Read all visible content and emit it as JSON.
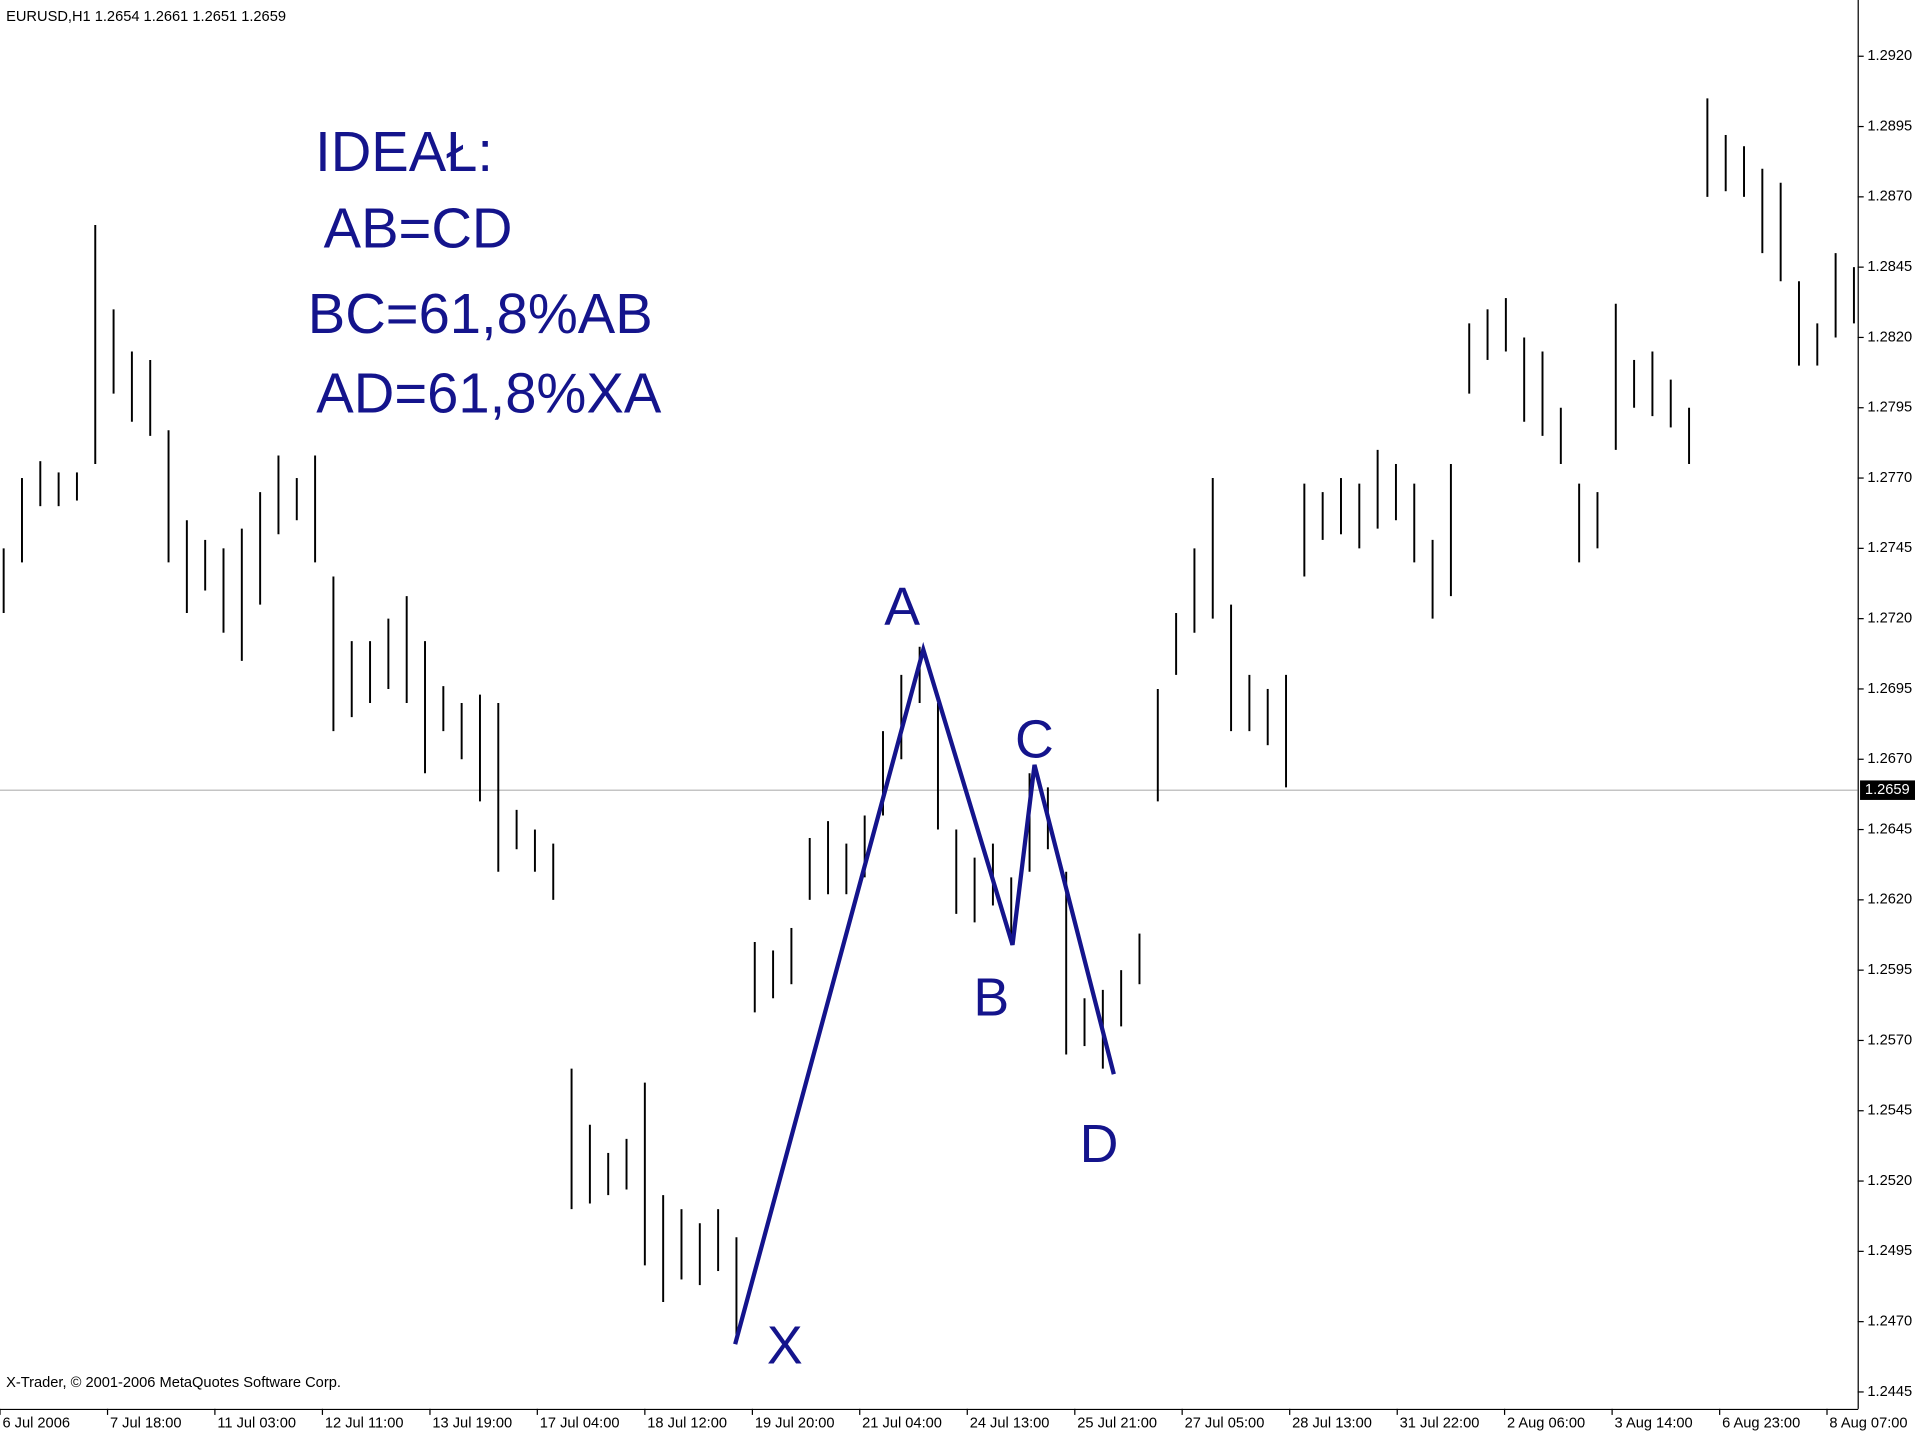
{
  "chart_data": {
    "type": "hilo",
    "title": "EURUSD,H1  1.2654 1.2661 1.2651 1.2659",
    "footer": "X-Trader, © 2001-2006 MetaQuotes Software Corp.",
    "annotations": [
      "IDEAŁ:",
      "AB=CD",
      "BC=61,8%AB",
      "AD=61,8%XA"
    ],
    "color": "#000000",
    "series": [
      {
        "high": [
          1.2745,
          1.277,
          1.2776,
          1.2772,
          1.2772,
          1.286,
          1.283,
          1.2815,
          1.2812,
          1.2787,
          1.2755,
          1.2748,
          1.2745,
          1.2752,
          1.2765,
          1.2778,
          1.277,
          1.2778,
          1.2735,
          1.2712,
          1.2712,
          1.272,
          1.2728,
          1.2712,
          1.2696,
          1.269,
          1.2693,
          1.269,
          1.2652,
          1.2645,
          1.264,
          1.256,
          1.254,
          1.253,
          1.2535,
          1.2555,
          1.2515,
          1.251,
          1.2505,
          1.251,
          1.25,
          1.2605,
          1.2602,
          1.261,
          1.2642,
          1.2648,
          1.264,
          1.265,
          1.268,
          1.27,
          1.271,
          1.269,
          1.2645,
          1.2635,
          1.264,
          1.2628,
          1.2665,
          1.266,
          1.263,
          1.2585,
          1.2588,
          1.2595,
          1.2608,
          1.2695,
          1.2722,
          1.2745,
          1.277,
          1.2725,
          1.27,
          1.2695,
          1.27,
          1.2768,
          1.2765,
          1.277,
          1.2768,
          1.278,
          1.2775,
          1.2768,
          1.2748,
          1.2775,
          1.2825,
          1.283,
          1.2834,
          1.282,
          1.2815,
          1.2795,
          1.2768,
          1.2765,
          1.2832,
          1.2812,
          1.2815,
          1.2805,
          1.2795,
          1.2905,
          1.2892,
          1.2888,
          1.288,
          1.2875,
          1.284,
          1.2825,
          1.285,
          1.2845
        ],
        "low": [
          1.2722,
          1.274,
          1.276,
          1.276,
          1.2762,
          1.2775,
          1.28,
          1.279,
          1.2785,
          1.274,
          1.2722,
          1.273,
          1.2715,
          1.2705,
          1.2725,
          1.275,
          1.2755,
          1.274,
          1.268,
          1.2685,
          1.269,
          1.2695,
          1.269,
          1.2665,
          1.268,
          1.267,
          1.2655,
          1.263,
          1.2638,
          1.263,
          1.262,
          1.251,
          1.2512,
          1.2515,
          1.2517,
          1.249,
          1.2477,
          1.2485,
          1.2483,
          1.2488,
          1.2463,
          1.258,
          1.2585,
          1.259,
          1.262,
          1.2622,
          1.2622,
          1.2628,
          1.265,
          1.267,
          1.269,
          1.2645,
          1.2615,
          1.2612,
          1.2618,
          1.2604,
          1.263,
          1.2638,
          1.2565,
          1.2568,
          1.256,
          1.2575,
          1.259,
          1.2655,
          1.27,
          1.2715,
          1.272,
          1.268,
          1.268,
          1.2675,
          1.266,
          1.2735,
          1.2748,
          1.275,
          1.2745,
          1.2752,
          1.2755,
          1.274,
          1.272,
          1.2728,
          1.28,
          1.2812,
          1.2815,
          1.279,
          1.2785,
          1.2775,
          1.274,
          1.2745,
          1.278,
          1.2795,
          1.2792,
          1.2788,
          1.2775,
          1.287,
          1.2872,
          1.287,
          1.285,
          1.284,
          1.281,
          1.281,
          1.282,
          1.2825
        ]
      }
    ],
    "pattern": {
      "color": "#14148c",
      "points": [
        {
          "label": "X",
          "x": 39.93,
          "y": 1.2462
        },
        {
          "label": "A",
          "x": 50.2,
          "y": 1.2709
        },
        {
          "label": "B",
          "x": 55.07,
          "y": 1.2604
        },
        {
          "label": "C",
          "x": 56.27,
          "y": 1.2668
        },
        {
          "label": "D",
          "x": 60.6,
          "y": 1.2558
        }
      ]
    },
    "current_price": {
      "value": 1.2659,
      "label": "1.2659"
    },
    "xlim": [
      -0.2,
      101.2
    ],
    "ylim": [
      1.2439,
      1.294
    ],
    "xticks": [
      {
        "value": -0.2,
        "label": "6 Jul 2006"
      },
      {
        "value": 5.67,
        "label": "7 Jul 18:00"
      },
      {
        "value": 11.53,
        "label": "11 Jul 03:00"
      },
      {
        "value": 17.4,
        "label": "12 Jul 11:00"
      },
      {
        "value": 23.27,
        "label": "13 Jul 19:00"
      },
      {
        "value": 29.13,
        "label": "17 Jul 04:00"
      },
      {
        "value": 35,
        "label": "18 Jul 12:00"
      },
      {
        "value": 40.87,
        "label": "19 Jul 20:00"
      },
      {
        "value": 46.73,
        "label": "21 Jul 04:00"
      },
      {
        "value": 52.6,
        "label": "24 Jul 13:00"
      },
      {
        "value": 58.47,
        "label": "25 Jul 21:00"
      },
      {
        "value": 64.33,
        "label": "27 Jul 05:00"
      },
      {
        "value": 70.2,
        "label": "28 Jul 13:00"
      },
      {
        "value": 76.07,
        "label": "31 Jul 22:00"
      },
      {
        "value": 81.93,
        "label": "2 Aug 06:00"
      },
      {
        "value": 87.8,
        "label": "3 Aug 14:00"
      },
      {
        "value": 93.67,
        "label": "6 Aug 23:00"
      },
      {
        "value": 99.53,
        "label": "8 Aug 07:00"
      }
    ],
    "yticks": [
      {
        "value": 1.292,
        "label": "1.2920"
      },
      {
        "value": 1.2895,
        "label": "1.2895"
      },
      {
        "value": 1.287,
        "label": "1.2870"
      },
      {
        "value": 1.2845,
        "label": "1.2845"
      },
      {
        "value": 1.282,
        "label": "1.2820"
      },
      {
        "value": 1.2795,
        "label": "1.2795"
      },
      {
        "value": 1.277,
        "label": "1.2770"
      },
      {
        "value": 1.2745,
        "label": "1.2745"
      },
      {
        "value": 1.272,
        "label": "1.2720"
      },
      {
        "value": 1.2695,
        "label": "1.2695"
      },
      {
        "value": 1.267,
        "label": "1.2670"
      },
      {
        "value": 1.2645,
        "label": "1.2645"
      },
      {
        "value": 1.262,
        "label": "1.2620"
      },
      {
        "value": 1.2595,
        "label": "1.2595"
      },
      {
        "value": 1.257,
        "label": "1.2570"
      },
      {
        "value": 1.2545,
        "label": "1.2545"
      },
      {
        "value": 1.252,
        "label": "1.2520"
      },
      {
        "value": 1.2495,
        "label": "1.2495"
      },
      {
        "value": 1.247,
        "label": "1.2470"
      },
      {
        "value": 1.2445,
        "label": "1.2445"
      }
    ],
    "grid": false
  }
}
